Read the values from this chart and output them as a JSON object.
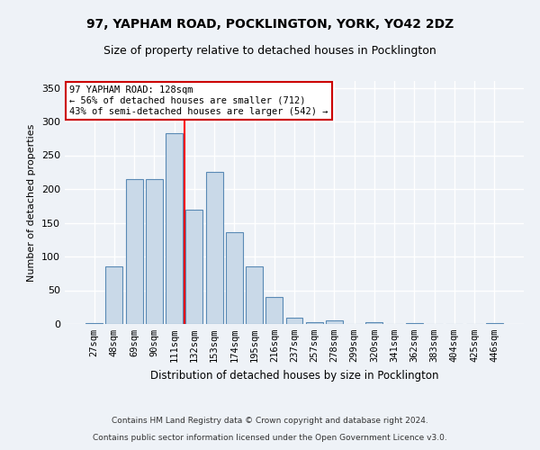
{
  "title1": "97, YAPHAM ROAD, POCKLINGTON, YORK, YO42 2DZ",
  "title2": "Size of property relative to detached houses in Pocklington",
  "xlabel": "Distribution of detached houses by size in Pocklington",
  "ylabel": "Number of detached properties",
  "footnote1": "Contains HM Land Registry data © Crown copyright and database right 2024.",
  "footnote2": "Contains public sector information licensed under the Open Government Licence v3.0.",
  "bar_color": "#c9d9e8",
  "bar_edge_color": "#5a8ab5",
  "categories": [
    "27sqm",
    "48sqm",
    "69sqm",
    "90sqm",
    "111sqm",
    "132sqm",
    "153sqm",
    "174sqm",
    "195sqm",
    "216sqm",
    "237sqm",
    "257sqm",
    "278sqm",
    "299sqm",
    "320sqm",
    "341sqm",
    "362sqm",
    "383sqm",
    "404sqm",
    "425sqm",
    "446sqm"
  ],
  "values": [
    2,
    86,
    215,
    215,
    283,
    170,
    225,
    136,
    85,
    40,
    9,
    3,
    5,
    0,
    3,
    0,
    2,
    0,
    0,
    0,
    2
  ],
  "ylim": [
    0,
    360
  ],
  "yticks": [
    0,
    50,
    100,
    150,
    200,
    250,
    300,
    350
  ],
  "annotation_title": "97 YAPHAM ROAD: 128sqm",
  "annotation_line1": "← 56% of detached houses are smaller (712)",
  "annotation_line2": "43% of semi-detached houses are larger (542) →",
  "annotation_box_color": "#ffffff",
  "annotation_box_edge": "#cc0000",
  "background_color": "#eef2f7",
  "grid_color": "#ffffff",
  "red_line_x": 4.5
}
